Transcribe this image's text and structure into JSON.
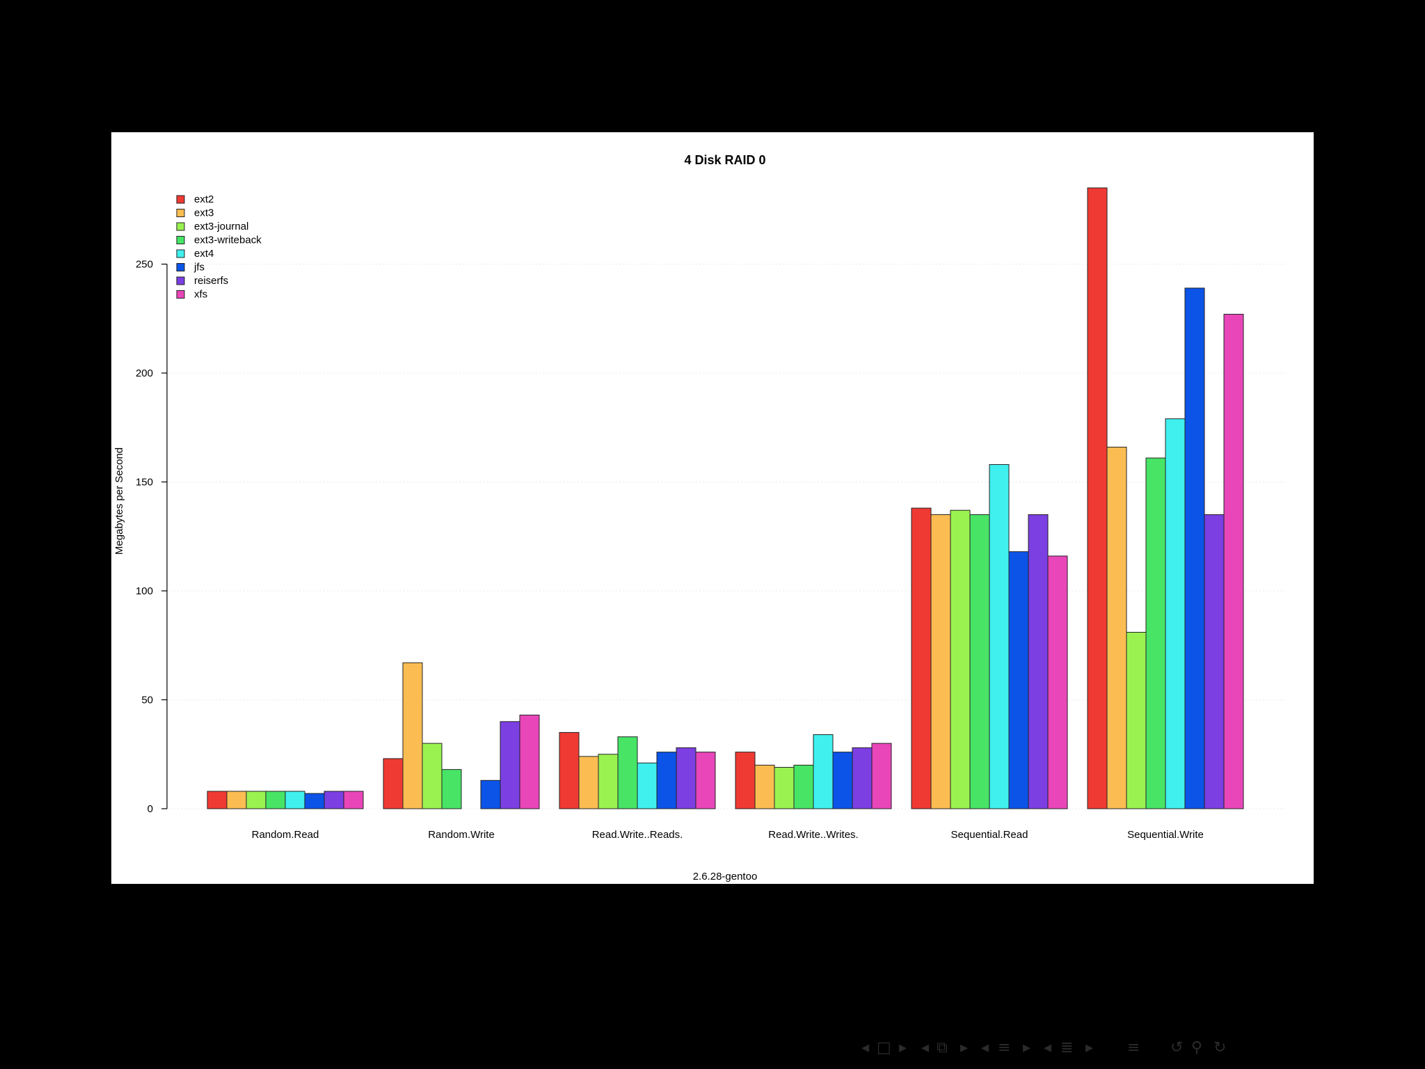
{
  "chart_data": {
    "type": "bar",
    "title": "4 Disk RAID 0",
    "xlabel": "2.6.28-gentoo",
    "ylabel": "Megabytes per Second",
    "ylim": [
      0,
      285
    ],
    "yticks": [
      0,
      50,
      100,
      150,
      200,
      250
    ],
    "grid": true,
    "legend_position": "top-left",
    "categories": [
      "Random.Read",
      "Random.Write",
      "Read.Write..Reads.",
      "Read.Write..Writes.",
      "Sequential.Read",
      "Sequential.Write"
    ],
    "series": [
      {
        "name": "ext2",
        "color": "#ef3a33",
        "values": [
          8,
          23,
          35,
          26,
          138,
          285
        ]
      },
      {
        "name": "ext3",
        "color": "#fbbd52",
        "values": [
          8,
          67,
          24,
          20,
          135,
          166
        ]
      },
      {
        "name": "ext3-journal",
        "color": "#9af251",
        "values": [
          8,
          30,
          25,
          19,
          137,
          81
        ]
      },
      {
        "name": "ext3-writeback",
        "color": "#47e466",
        "values": [
          8,
          18,
          33,
          20,
          135,
          161
        ]
      },
      {
        "name": "ext4",
        "color": "#3ff0ef",
        "values": [
          8,
          0,
          21,
          34,
          158,
          179
        ]
      },
      {
        "name": "jfs",
        "color": "#0c54e8",
        "values": [
          7,
          13,
          26,
          26,
          118,
          239
        ]
      },
      {
        "name": "reiserfs",
        "color": "#7b3fe2",
        "values": [
          8,
          40,
          28,
          28,
          135,
          135
        ]
      },
      {
        "name": "xfs",
        "color": "#e946b9",
        "values": [
          8,
          43,
          26,
          30,
          116,
          227
        ]
      }
    ]
  },
  "nav": {
    "icons": [
      "arrow-left-icon",
      "frame-icon",
      "arrow-right-icon",
      "arrow-left-icon",
      "subsection-icon",
      "arrow-right-icon",
      "arrow-left-icon",
      "section-icon",
      "arrow-right-icon",
      "arrow-left-icon",
      "list-icon",
      "arrow-right-icon",
      "align-icon",
      "undo-icon",
      "search-icon",
      "redo-icon"
    ]
  }
}
